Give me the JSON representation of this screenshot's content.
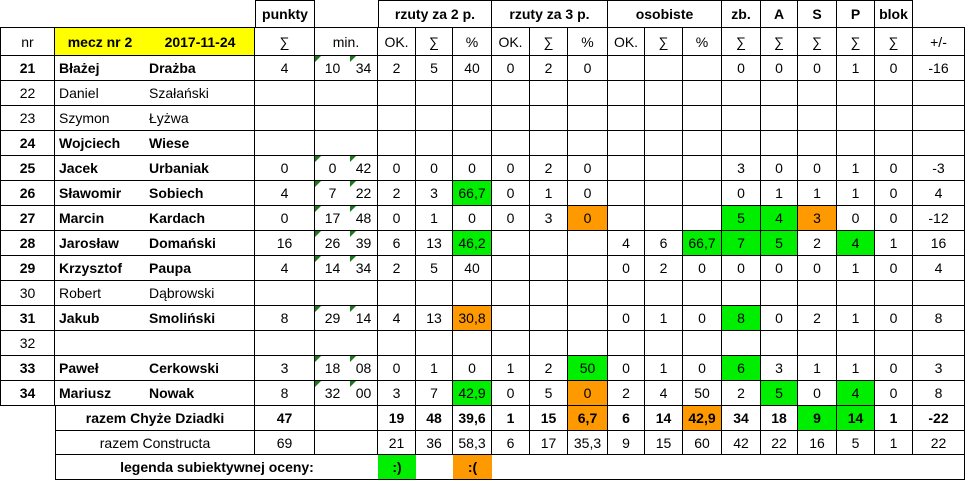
{
  "colors": {
    "good": "#00ee00",
    "bad": "#ff9900",
    "match_highlight": "#ffff00"
  },
  "header": {
    "groups": {
      "punkty": "punkty",
      "rzuty2": "rzuty za 2 p.",
      "rzuty3": "rzuty za 3 p.",
      "osobiste": "osobiste",
      "zb": "zb.",
      "a": "A",
      "s": "S",
      "p": "P",
      "blok": "blok"
    },
    "nr": "nr",
    "match": "mecz nr 2",
    "date": "2017-11-24",
    "sub": [
      "∑",
      "min.",
      "OK.",
      "∑",
      "%",
      "OK.",
      "∑",
      "%",
      "OK.",
      "∑",
      "%",
      "∑",
      "∑",
      "∑",
      "∑",
      "∑",
      "+/-"
    ]
  },
  "players": [
    {
      "nr": "21",
      "first": "Błażej",
      "last": "Drażba",
      "bold": true,
      "pts": "4",
      "min_a": "10",
      "min_b": "34",
      "p2ok": "2",
      "p2all": "5",
      "p2pct": "40",
      "p3ok": "0",
      "p3all": "2",
      "p3pct": "0",
      "ftok": "",
      "ftall": "",
      "ftpct": "",
      "zb": "0",
      "a": "0",
      "s": "0",
      "p": "1",
      "blok": "0",
      "pm": "-16"
    },
    {
      "nr": "22",
      "first": "Daniel",
      "last": "Szałański",
      "bold": false,
      "pts": "",
      "min_a": "",
      "min_b": "",
      "p2ok": "",
      "p2all": "",
      "p2pct": "",
      "p3ok": "",
      "p3all": "",
      "p3pct": "",
      "ftok": "",
      "ftall": "",
      "ftpct": "",
      "zb": "",
      "a": "",
      "s": "",
      "p": "",
      "blok": "",
      "pm": ""
    },
    {
      "nr": "23",
      "first": "Szymon",
      "last": "Łyżwa",
      "bold": false,
      "pts": "",
      "min_a": "",
      "min_b": "",
      "p2ok": "",
      "p2all": "",
      "p2pct": "",
      "p3ok": "",
      "p3all": "",
      "p3pct": "",
      "ftok": "",
      "ftall": "",
      "ftpct": "",
      "zb": "",
      "a": "",
      "s": "",
      "p": "",
      "blok": "",
      "pm": ""
    },
    {
      "nr": "24",
      "first": "Wojciech",
      "last": "Wiese",
      "bold": true,
      "pts": "",
      "min_a": "",
      "min_b": "",
      "p2ok": "",
      "p2all": "",
      "p2pct": "",
      "p3ok": "",
      "p3all": "",
      "p3pct": "",
      "ftok": "",
      "ftall": "",
      "ftpct": "",
      "zb": "",
      "a": "",
      "s": "",
      "p": "",
      "blok": "",
      "pm": ""
    },
    {
      "nr": "25",
      "first": "Jacek",
      "last": "Urbaniak",
      "bold": true,
      "pts": "0",
      "min_a": "0",
      "min_b": "42",
      "p2ok": "0",
      "p2all": "0",
      "p2pct": "0",
      "p3ok": "0",
      "p3all": "2",
      "p3pct": "0",
      "ftok": "",
      "ftall": "",
      "ftpct": "",
      "zb": "3",
      "a": "0",
      "s": "0",
      "p": "1",
      "blok": "0",
      "pm": "-3"
    },
    {
      "nr": "26",
      "first": "Sławomir",
      "last": "Sobiech",
      "bold": true,
      "pts": "4",
      "min_a": "7",
      "min_b": "22",
      "p2ok": "2",
      "p2all": "3",
      "p2pct": "66,7",
      "p3ok": "0",
      "p3all": "1",
      "p3pct": "0",
      "ftok": "",
      "ftall": "",
      "ftpct": "",
      "zb": "0",
      "a": "1",
      "s": "1",
      "p": "1",
      "blok": "0",
      "pm": "4"
    },
    {
      "nr": "27",
      "first": "Marcin",
      "last": "Kardach",
      "bold": true,
      "pts": "0",
      "min_a": "17",
      "min_b": "48",
      "p2ok": "0",
      "p2all": "1",
      "p2pct": "0",
      "p3ok": "0",
      "p3all": "3",
      "p3pct": "0",
      "ftok": "",
      "ftall": "",
      "ftpct": "",
      "zb": "5",
      "a": "4",
      "s": "3",
      "p": "0",
      "blok": "0",
      "pm": "-12"
    },
    {
      "nr": "28",
      "first": "Jarosław",
      "last": "Domański",
      "bold": true,
      "pts": "16",
      "min_a": "26",
      "min_b": "39",
      "p2ok": "6",
      "p2all": "13",
      "p2pct": "46,2",
      "p3ok": "",
      "p3all": "",
      "p3pct": "",
      "ftok": "4",
      "ftall": "6",
      "ftpct": "66,7",
      "zb": "7",
      "a": "5",
      "s": "2",
      "p": "4",
      "blok": "1",
      "pm": "16"
    },
    {
      "nr": "29",
      "first": "Krzysztof",
      "last": "Paupa",
      "bold": true,
      "pts": "4",
      "min_a": "14",
      "min_b": "34",
      "p2ok": "2",
      "p2all": "5",
      "p2pct": "40",
      "p3ok": "",
      "p3all": "",
      "p3pct": "",
      "ftok": "0",
      "ftall": "2",
      "ftpct": "0",
      "zb": "0",
      "a": "0",
      "s": "0",
      "p": "1",
      "blok": "0",
      "pm": "4"
    },
    {
      "nr": "30",
      "first": "Robert",
      "last": "Dąbrowski",
      "bold": false,
      "pts": "",
      "min_a": "",
      "min_b": "",
      "p2ok": "",
      "p2all": "",
      "p2pct": "",
      "p3ok": "",
      "p3all": "",
      "p3pct": "",
      "ftok": "",
      "ftall": "",
      "ftpct": "",
      "zb": "",
      "a": "",
      "s": "",
      "p": "",
      "blok": "",
      "pm": ""
    },
    {
      "nr": "31",
      "first": "Jakub",
      "last": "Smoliński",
      "bold": true,
      "pts": "8",
      "min_a": "29",
      "min_b": "14",
      "p2ok": "4",
      "p2all": "13",
      "p2pct": "30,8",
      "p3ok": "",
      "p3all": "",
      "p3pct": "",
      "ftok": "0",
      "ftall": "1",
      "ftpct": "0",
      "zb": "8",
      "a": "0",
      "s": "2",
      "p": "1",
      "blok": "0",
      "pm": "8"
    },
    {
      "nr": "32",
      "first": "",
      "last": "",
      "bold": false,
      "pts": "",
      "min_a": "",
      "min_b": "",
      "p2ok": "",
      "p2all": "",
      "p2pct": "",
      "p3ok": "",
      "p3all": "",
      "p3pct": "",
      "ftok": "",
      "ftall": "",
      "ftpct": "",
      "zb": "",
      "a": "",
      "s": "",
      "p": "",
      "blok": "",
      "pm": ""
    },
    {
      "nr": "33",
      "first": "Paweł",
      "last": "Cerkowski",
      "bold": true,
      "pts": "3",
      "min_a": "18",
      "min_b": "08",
      "p2ok": "0",
      "p2all": "1",
      "p2pct": "0",
      "p3ok": "1",
      "p3all": "2",
      "p3pct": "50",
      "ftok": "0",
      "ftall": "1",
      "ftpct": "0",
      "zb": "6",
      "a": "3",
      "s": "1",
      "p": "1",
      "blok": "0",
      "pm": "3"
    },
    {
      "nr": "34",
      "first": "Mariusz",
      "last": "Nowak",
      "bold": true,
      "pts": "8",
      "min_a": "32",
      "min_b": "00",
      "p2ok": "3",
      "p2all": "7",
      "p2pct": "42,9",
      "p3ok": "0",
      "p3all": "5",
      "p3pct": "0",
      "ftok": "2",
      "ftall": "4",
      "ftpct": "50",
      "zb": "2",
      "a": "5",
      "s": "0",
      "p": "4",
      "blok": "0",
      "pm": "8"
    }
  ],
  "totals": {
    "team": {
      "label": "razem Chyże Dziadki",
      "pts": "47",
      "p2ok": "19",
      "p2all": "48",
      "p2pct": "39,6",
      "p3ok": "1",
      "p3all": "15",
      "p3pct": "6,7",
      "ftok": "6",
      "ftall": "14",
      "ftpct": "42,9",
      "zb": "34",
      "a": "18",
      "s": "9",
      "p": "14",
      "blok": "1",
      "pm": "-22"
    },
    "opp": {
      "label": "razem Constructa",
      "pts": "69",
      "p2ok": "21",
      "p2all": "36",
      "p2pct": "58,3",
      "p3ok": "6",
      "p3all": "17",
      "p3pct": "35,3",
      "ftok": "9",
      "ftall": "15",
      "ftpct": "60",
      "zb": "42",
      "a": "22",
      "s": "16",
      "p": "5",
      "blok": "1",
      "pm": "22"
    }
  },
  "legend": {
    "label": "legenda subiektywnej oceny:",
    "good": ":)",
    "bad": ":("
  }
}
